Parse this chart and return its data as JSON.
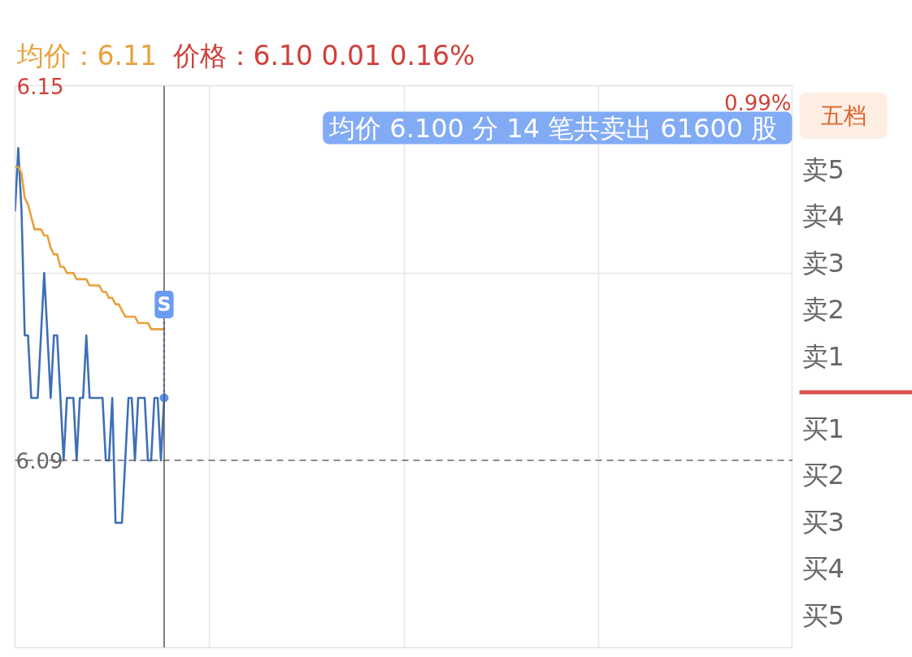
{
  "chart_data": [
    {
      "type": "line",
      "title": "均价：6.11",
      "subtitle": "价格：6.10  0.01  0.16%",
      "categories": [
        null,
        null,
        null,
        null,
        null,
        null,
        null,
        null,
        null,
        null,
        null,
        null,
        null,
        null,
        null,
        null,
        null,
        null,
        null,
        null,
        null,
        null,
        null,
        null,
        null,
        null,
        null,
        null,
        null,
        null,
        null,
        null,
        null,
        null,
        null,
        null,
        null,
        null,
        null,
        null,
        null,
        null,
        null,
        null,
        null,
        null,
        null,
        null,
        null,
        null,
        null,
        null,
        null,
        null,
        null,
        null,
        null,
        null,
        null,
        null,
        null,
        null,
        null,
        null,
        null,
        null,
        null,
        null,
        null,
        null,
        null,
        null,
        null,
        null,
        null,
        null,
        null,
        null,
        null,
        null,
        null,
        null,
        null,
        null,
        null,
        null,
        null,
        null,
        null,
        null,
        null,
        null,
        null,
        null,
        null,
        null,
        null,
        null,
        null,
        null,
        null,
        null,
        null,
        null,
        null,
        null,
        null,
        null,
        null,
        null,
        null,
        null,
        null,
        null,
        null,
        null,
        null,
        null,
        null,
        null,
        null,
        null,
        null,
        null,
        null,
        null,
        null,
        null,
        null,
        null,
        null,
        null,
        null,
        null,
        null,
        null,
        null,
        null,
        null,
        null,
        null,
        null,
        null,
        null,
        null,
        null,
        null,
        null,
        null,
        null,
        null,
        null,
        null,
        null,
        null,
        null,
        null,
        null,
        null,
        null,
        null,
        null,
        null,
        null,
        null,
        null,
        null,
        null,
        null,
        null,
        null,
        null,
        null,
        null,
        null,
        null,
        null,
        null,
        null,
        null,
        null,
        null,
        null,
        null,
        null,
        null,
        null,
        null,
        null,
        null,
        null,
        null,
        null,
        null,
        null,
        null,
        null,
        null,
        null,
        null,
        null,
        null,
        null,
        null,
        null,
        null,
        null,
        null,
        null,
        null,
        null,
        null,
        null,
        null,
        null,
        null,
        null,
        null,
        null,
        null,
        null,
        null,
        null,
        null,
        null,
        null,
        null,
        null,
        null,
        null,
        null,
        null,
        null,
        null,
        null,
        null,
        null,
        null,
        null,
        null,
        null
      ],
      "series": [
        {
          "color": "#3f6fb6",
          "values": [
            6.13,
            6.14,
            6.13,
            6.11,
            6.11,
            6.1,
            6.1,
            6.1,
            6.11,
            6.12,
            6.11,
            6.1,
            6.11,
            6.11,
            6.1,
            6.09,
            6.1,
            6.1,
            6.1,
            6.09,
            6.1,
            6.1,
            6.11,
            6.1,
            6.1,
            6.1,
            6.1,
            6.1,
            6.09,
            6.09,
            6.1,
            6.08,
            6.08,
            6.08,
            6.09,
            6.1,
            6.1,
            6.09,
            6.1,
            6.1,
            6.1,
            6.09,
            6.09,
            6.1,
            6.1,
            6.09,
            6.1,
            null,
            null,
            null,
            null,
            null,
            null,
            null,
            null,
            null,
            null,
            null,
            null,
            null,
            null,
            null,
            null,
            null,
            null,
            null,
            null,
            null,
            null,
            null,
            null,
            null,
            null,
            null,
            null,
            null,
            null,
            null,
            null,
            null,
            null,
            null,
            null,
            null,
            null,
            null,
            null,
            null,
            null,
            null,
            null,
            null,
            null,
            null,
            null,
            null,
            null,
            null,
            null,
            null,
            null,
            null,
            null,
            null,
            null,
            null,
            null,
            null,
            null,
            null,
            null,
            null,
            null,
            null,
            null,
            null,
            null,
            null,
            null,
            null,
            null,
            null,
            null,
            null,
            null,
            null,
            null,
            null,
            null,
            null,
            null,
            null,
            null,
            null,
            null,
            null,
            null,
            null,
            null,
            null,
            null,
            null,
            null,
            null,
            null,
            null,
            null,
            null,
            null,
            null,
            null,
            null,
            null,
            null,
            null,
            null,
            null,
            null,
            null,
            null,
            null,
            null,
            null,
            null,
            null,
            null,
            null,
            null,
            null,
            null,
            null,
            null,
            null,
            null,
            null,
            null,
            null,
            null,
            null,
            null,
            null,
            null,
            null,
            null,
            null,
            null,
            null,
            null,
            null,
            null,
            null,
            null,
            null,
            null,
            null,
            null,
            null,
            null,
            null,
            null,
            null,
            null,
            null,
            null,
            null,
            null,
            null,
            null,
            null,
            null,
            null,
            null,
            null,
            null,
            null,
            null,
            null,
            null,
            null,
            null,
            null,
            null,
            null,
            null,
            null,
            null,
            null,
            null,
            null,
            null,
            null,
            null,
            null,
            null,
            null,
            null,
            null,
            null,
            null,
            null,
            null
          ]
        },
        {
          "color": "#eb9f3b",
          "values": [
            6.137,
            6.137,
            6.136,
            6.132,
            6.131,
            6.129,
            6.127,
            6.127,
            6.127,
            6.126,
            6.126,
            6.124,
            6.123,
            6.123,
            6.121,
            6.121,
            6.12,
            6.12,
            6.12,
            6.119,
            6.119,
            6.119,
            6.119,
            6.118,
            6.118,
            6.118,
            6.118,
            6.117,
            6.117,
            6.116,
            6.116,
            6.115,
            6.115,
            6.114,
            6.113,
            6.113,
            6.113,
            6.113,
            6.112,
            6.112,
            6.112,
            6.112,
            6.111,
            6.111,
            6.111,
            6.111,
            6.111,
            null,
            null,
            null,
            null,
            null,
            null,
            null,
            null,
            null,
            null,
            null,
            null,
            null,
            null,
            null,
            null,
            null,
            null,
            null,
            null,
            null,
            null,
            null,
            null,
            null,
            null,
            null,
            null,
            null,
            null,
            null,
            null,
            null,
            null,
            null,
            null,
            null,
            null,
            null,
            null,
            null,
            null,
            null,
            null,
            null,
            null,
            null,
            null,
            null,
            null,
            null,
            null,
            null,
            null,
            null,
            null,
            null,
            null,
            null,
            null,
            null,
            null,
            null,
            null,
            null,
            null,
            null,
            null,
            null,
            null,
            null,
            null,
            null,
            null,
            null,
            null,
            null,
            null,
            null,
            null,
            null,
            null,
            null,
            null,
            null,
            null,
            null,
            null,
            null,
            null,
            null,
            null,
            null,
            null,
            null,
            null,
            null,
            null,
            null,
            null,
            null,
            null,
            null,
            null,
            null,
            null,
            null,
            null,
            null,
            null,
            null,
            null,
            null,
            null,
            null,
            null,
            null,
            null,
            null,
            null,
            null,
            null,
            null,
            null,
            null,
            null,
            null,
            null,
            null,
            null,
            null,
            null,
            null,
            null,
            null,
            null,
            null,
            null,
            null,
            null,
            null,
            null,
            null,
            null,
            null,
            null,
            null,
            null,
            null,
            null,
            null,
            null,
            null,
            null,
            null,
            null,
            null,
            null,
            null,
            null,
            null,
            null,
            null,
            null,
            null,
            null,
            null,
            null,
            null,
            null,
            null,
            null,
            null,
            null,
            null,
            null,
            null,
            null,
            null,
            null,
            null,
            null,
            null,
            null,
            null,
            null,
            null,
            null,
            null,
            null,
            null,
            null,
            null,
            null
          ]
        }
      ],
      "ylim": [
        6.06,
        6.15
      ],
      "yticks": [
        6.15,
        {
          "value": 6.12,
          "label": null
        },
        6.09
      ],
      "tick_labels": "y",
      "grid": true,
      "ref_lines": [
        {
          "axis": "y",
          "value": 6.09,
          "color": "#666666",
          "line_style": "dashed"
        }
      ],
      "annotations": [
        "0.99%",
        "均价 6.100  分 14 笔共卖出 61600 股",
        {
          "text": "S",
          "y": 6.1
        }
      ]
    },
    {
      "type": "other",
      "title": "五档",
      "annotations": [
        "卖5",
        "卖4",
        "卖3",
        "卖2",
        "卖1",
        "买1",
        "买2",
        "买3",
        "买4",
        "买5"
      ]
    }
  ]
}
